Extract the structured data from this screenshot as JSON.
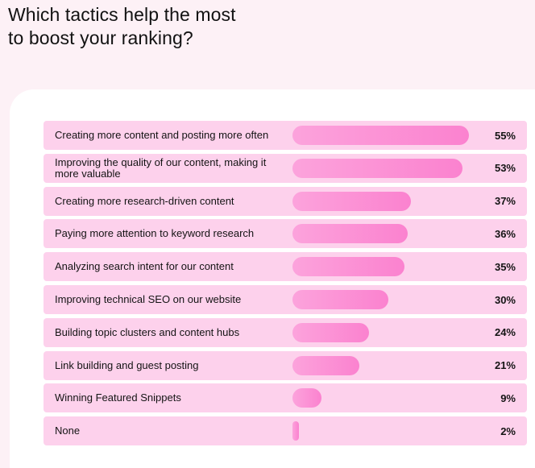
{
  "title_lines": [
    "Which tactics help the most",
    "to boost your ranking?"
  ],
  "colors": {
    "background": "#fdf1f6",
    "row": "#fdd1ec",
    "bar_start": "#fca3dc",
    "bar_end": "#fb82cf"
  },
  "chart_data": {
    "type": "bar",
    "orientation": "horizontal",
    "title": "Which tactics help the most to boost your ranking?",
    "unit": "%",
    "categories": [
      "Creating more content and posting more often",
      "Improving the quality of our content, making it more valuable",
      "Creating more research-driven content",
      "Paying more attention to keyword research",
      "Analyzing search intent for our content",
      "Improving technical SEO on our website",
      "Building topic clusters and content hubs",
      "Link building and guest posting",
      "Winning Featured Snippets",
      "None"
    ],
    "values": [
      55,
      53,
      37,
      36,
      35,
      30,
      24,
      21,
      9,
      2
    ],
    "value_labels": [
      "55%",
      "53%",
      "37%",
      "36%",
      "35%",
      "30%",
      "24%",
      "21%",
      "9%",
      "2%"
    ],
    "xlim": [
      0,
      55
    ]
  }
}
